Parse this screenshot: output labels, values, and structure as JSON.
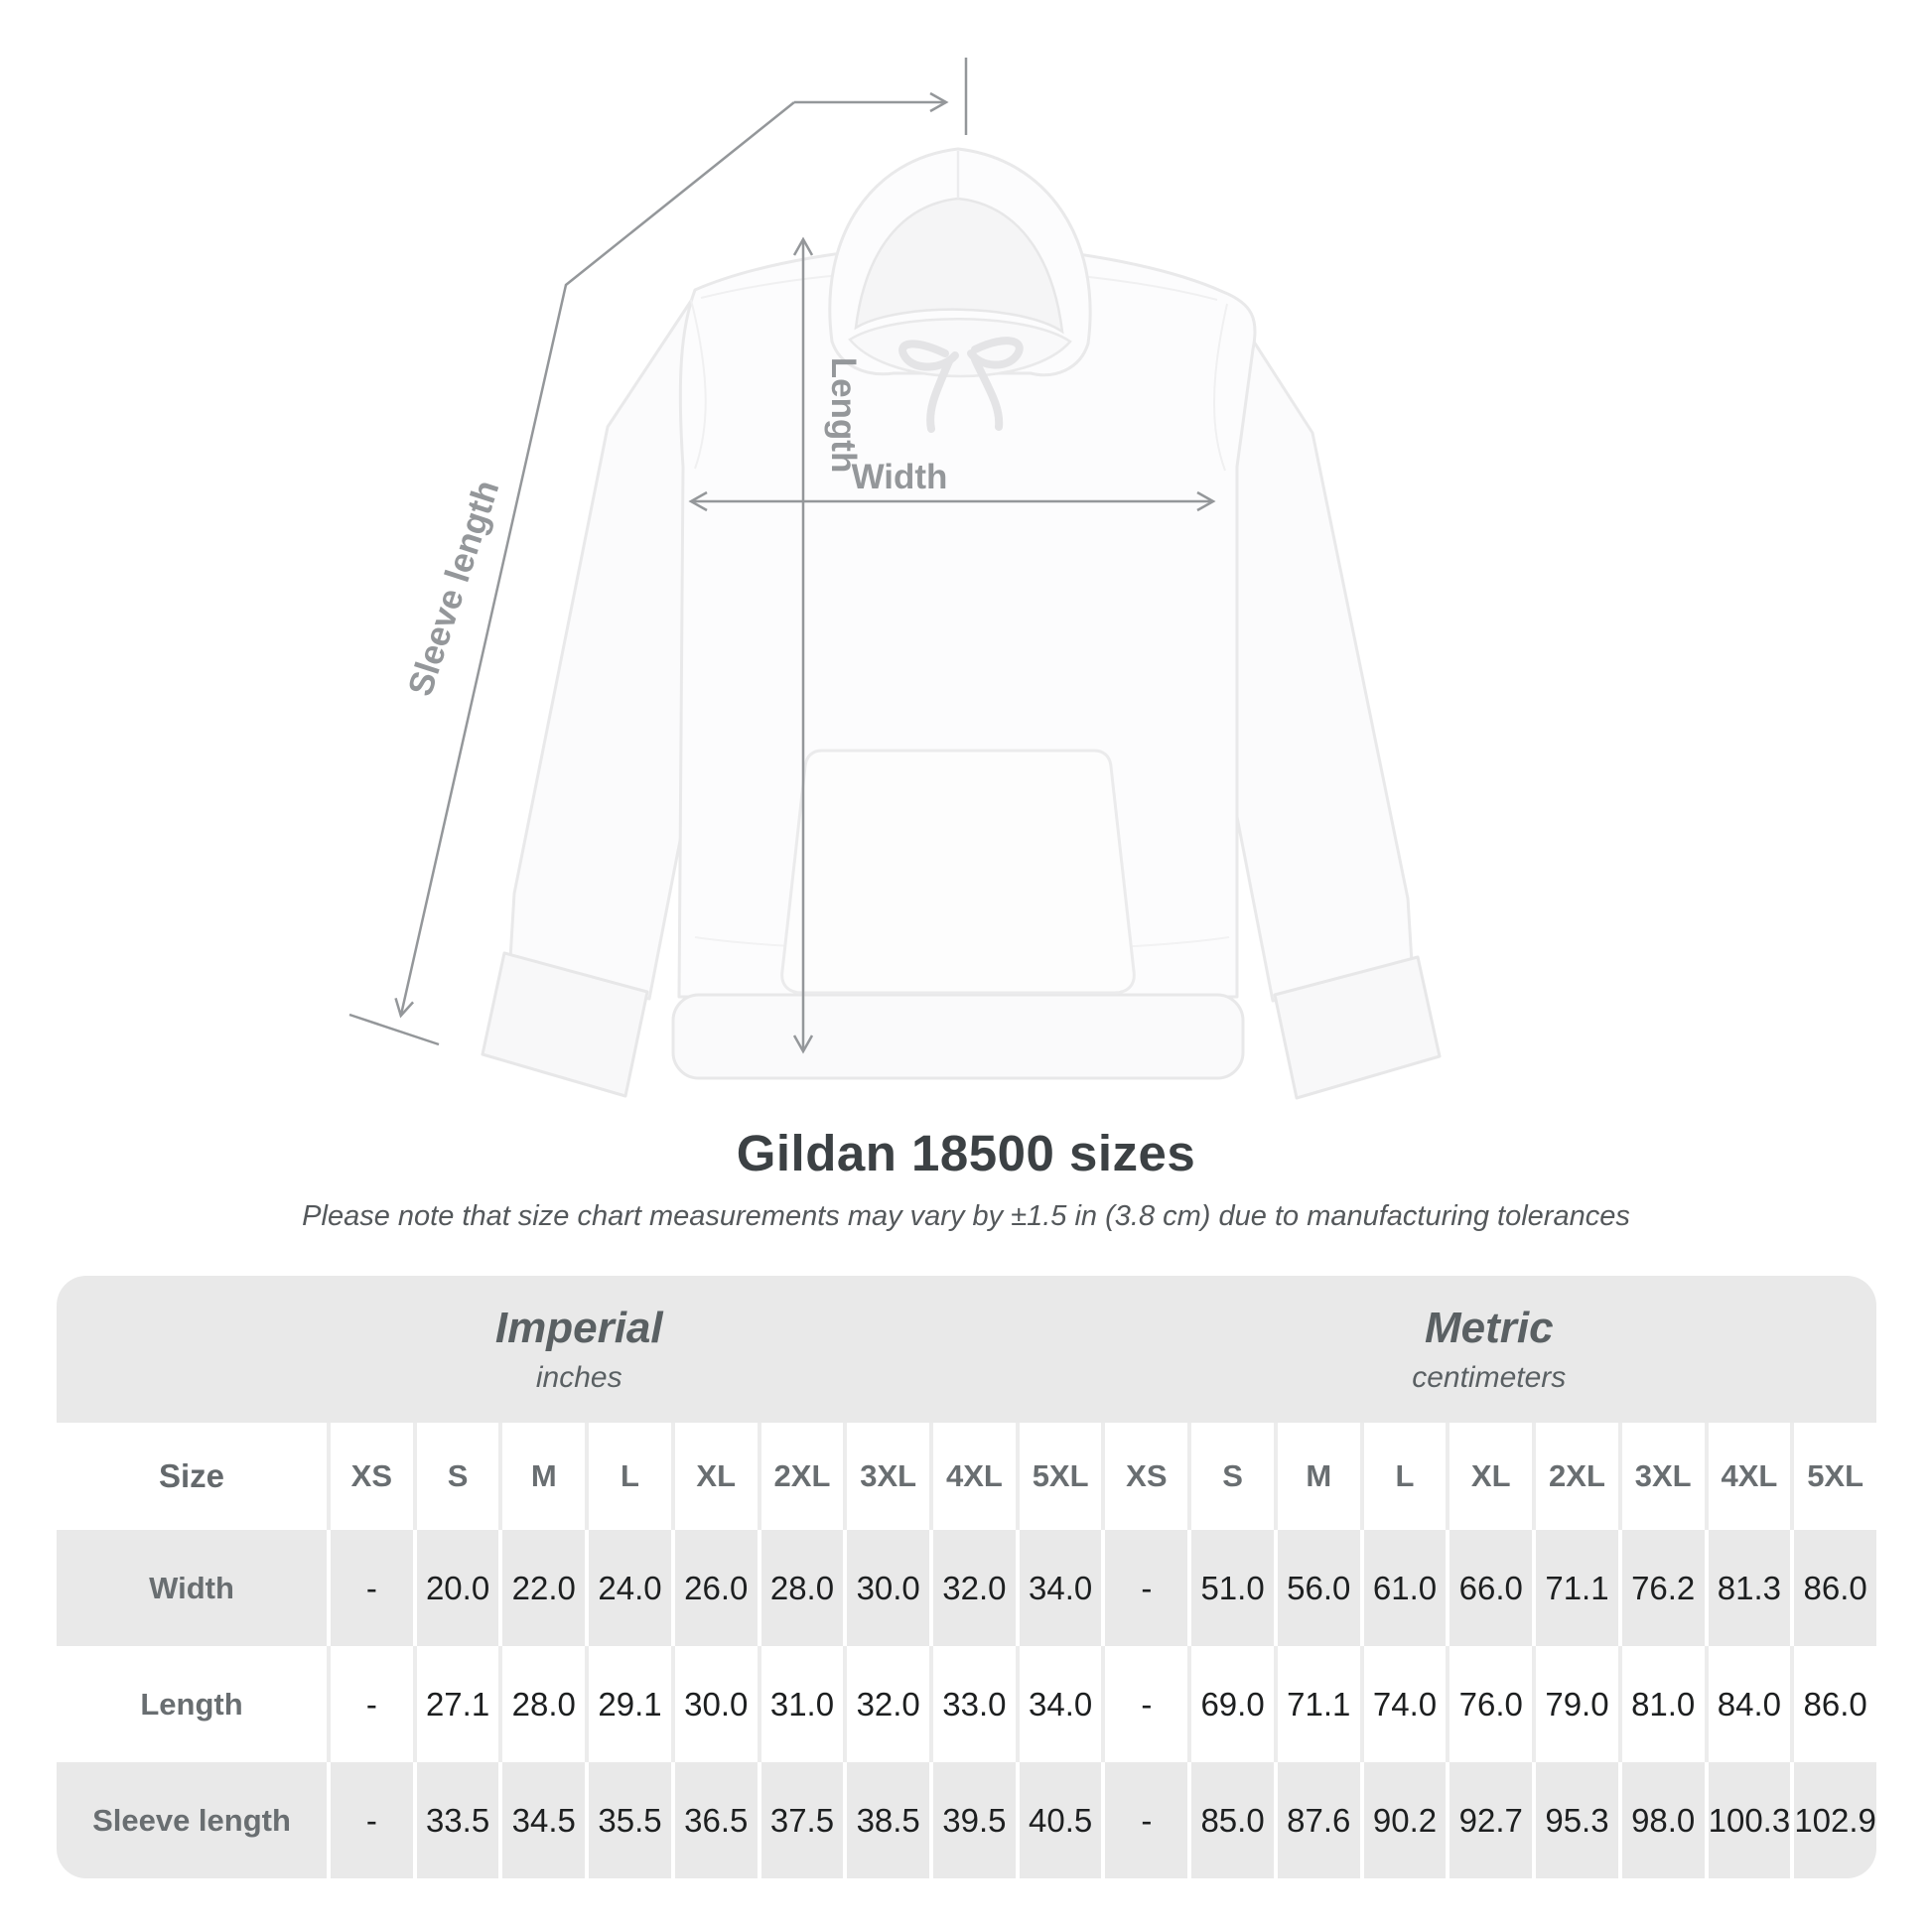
{
  "figure": {
    "sleeve_label": "Sleeve length",
    "length_label": "Length",
    "width_label": "Width"
  },
  "title": "Gildan 18500 sizes",
  "subtitle": "Please note that size chart measurements may vary by ±1.5 in (3.8 cm) due to manufacturing tolerances",
  "table": {
    "groups": [
      {
        "name": "Imperial",
        "unit": "inches"
      },
      {
        "name": "Metric",
        "unit": "centimeters"
      }
    ],
    "size_label": "Size",
    "sizes": [
      "XS",
      "S",
      "M",
      "L",
      "XL",
      "2XL",
      "3XL",
      "4XL",
      "5XL"
    ],
    "rows": [
      {
        "label": "Width",
        "imperial": [
          "-",
          "20.0",
          "22.0",
          "24.0",
          "26.0",
          "28.0",
          "30.0",
          "32.0",
          "34.0"
        ],
        "metric": [
          "-",
          "51.0",
          "56.0",
          "61.0",
          "66.0",
          "71.1",
          "76.2",
          "81.3",
          "86.0"
        ]
      },
      {
        "label": "Length",
        "imperial": [
          "-",
          "27.1",
          "28.0",
          "29.1",
          "30.0",
          "31.0",
          "32.0",
          "33.0",
          "34.0"
        ],
        "metric": [
          "-",
          "69.0",
          "71.1",
          "74.0",
          "76.0",
          "79.0",
          "81.0",
          "84.0",
          "86.0"
        ]
      },
      {
        "label": "Sleeve length",
        "imperial": [
          "-",
          "33.5",
          "34.5",
          "35.5",
          "36.5",
          "37.5",
          "38.5",
          "39.5",
          "40.5"
        ],
        "metric": [
          "-",
          "85.0",
          "87.6",
          "90.2",
          "92.7",
          "95.3",
          "98.0",
          "100.3",
          "102.9"
        ]
      }
    ]
  },
  "colors": {
    "background": "#ffffff",
    "table_band_gray": "#e9e9e9",
    "annotation_gray": "#94979a",
    "title_color": "#3c4144",
    "value_color": "#1d1f20",
    "label_color": "#696e71"
  }
}
